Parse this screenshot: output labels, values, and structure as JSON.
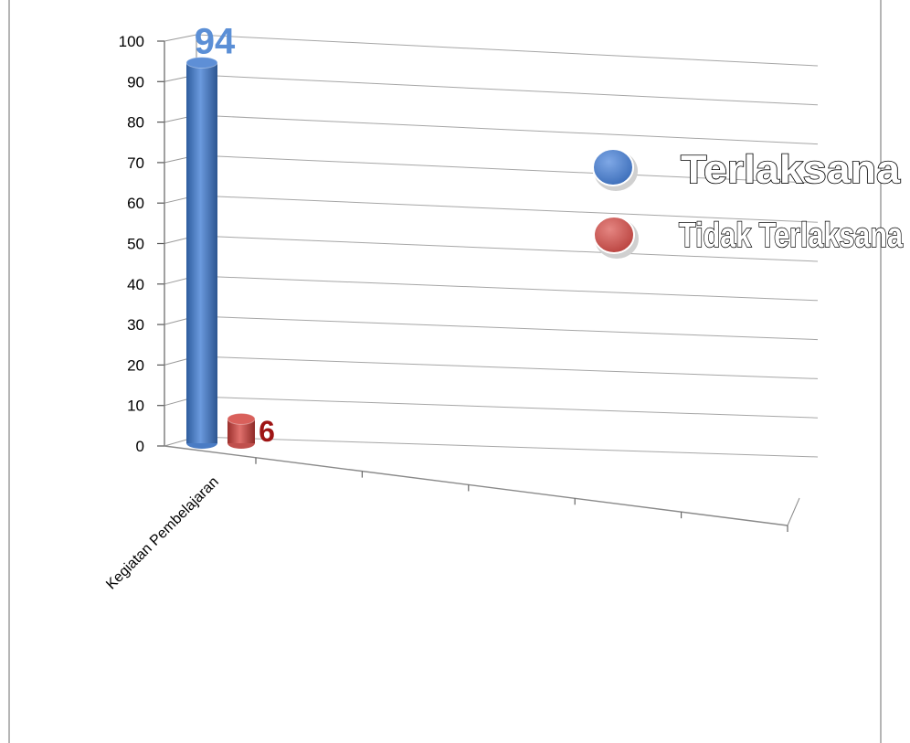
{
  "chart_data": {
    "type": "bar",
    "categories": [
      "Kegiatan Pembelajaran"
    ],
    "series": [
      {
        "name": "Terlaksana",
        "values": [
          94
        ],
        "color": "#4a7cc4"
      },
      {
        "name": "Tidak Terlaksana",
        "values": [
          6
        ],
        "color": "#c0504d"
      }
    ],
    "data_labels": [
      "94",
      "6"
    ],
    "data_label_colors": [
      "#5b8fd6",
      "#9e1414"
    ],
    "y_ticks": [
      "0",
      "10",
      "20",
      "30",
      "40",
      "50",
      "60",
      "70",
      "80",
      "90",
      "100"
    ],
    "ylim": [
      0,
      100
    ],
    "grid": true,
    "legend_position": "right",
    "title": "",
    "xlabel": "",
    "ylabel": ""
  }
}
